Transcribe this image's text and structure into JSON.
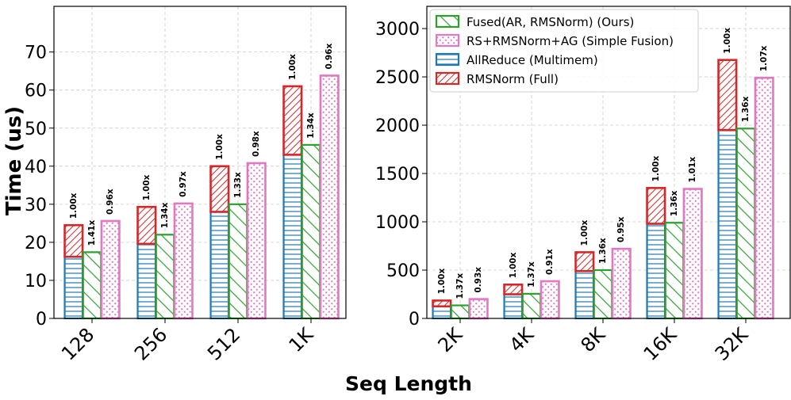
{
  "chart_data": {
    "type": "bar",
    "subtype": "grouped-stacked",
    "ylabel": "Time (us)",
    "xlabel": "Seq Length",
    "legend": {
      "placement": "top-left of right panel",
      "entries": [
        {
          "key": "fused",
          "label": "Fused(AR, RMSNorm) (Ours)"
        },
        {
          "key": "simple",
          "label": "RS+RMSNorm+AG (Simple Fusion)"
        },
        {
          "key": "allreduce",
          "label": "AllReduce (Multimem)"
        },
        {
          "key": "rmsnorm",
          "label": "RMSNorm (Full)"
        }
      ]
    },
    "colors": {
      "fused": "#2ca02c",
      "simple": "#e377c2",
      "allreduce": "#1f77b4",
      "rmsnorm": "#d62728"
    },
    "panels": [
      {
        "name": "left",
        "ylim": [
          0,
          82
        ],
        "yticks": [
          "0",
          "10",
          "20",
          "30",
          "40",
          "50",
          "60",
          "70"
        ],
        "ytick_values": [
          0,
          10,
          20,
          30,
          40,
          50,
          60,
          70
        ],
        "grid": true,
        "categories": [
          "128",
          "256",
          "512",
          "1K"
        ],
        "groups": [
          {
            "category": "128",
            "allreduce": 16.2,
            "rmsnorm": 8.3,
            "fused": 17.4,
            "simple": 25.6,
            "labels": [
              "1.00x",
              "1.41x",
              "0.96x"
            ]
          },
          {
            "category": "256",
            "allreduce": 19.6,
            "rmsnorm": 9.7,
            "fused": 22.0,
            "simple": 30.2,
            "labels": [
              "1.00x",
              "1.34x",
              "0.97x"
            ]
          },
          {
            "category": "512",
            "allreduce": 28.0,
            "rmsnorm": 12.0,
            "fused": 30.0,
            "simple": 40.8,
            "labels": [
              "1.00x",
              "1.33x",
              "0.98x"
            ]
          },
          {
            "category": "1K",
            "allreduce": 43.0,
            "rmsnorm": 18.0,
            "fused": 45.6,
            "simple": 63.8,
            "labels": [
              "1.00x",
              "1.34x",
              "0.96x"
            ]
          }
        ]
      },
      {
        "name": "right",
        "ylim": [
          0,
          3230
        ],
        "yticks": [
          "0",
          "500",
          "1000",
          "1500",
          "2000",
          "2500",
          "3000"
        ],
        "ytick_values": [
          0,
          500,
          1000,
          1500,
          2000,
          2500,
          3000
        ],
        "grid": true,
        "categories": [
          "2K",
          "4K",
          "8K",
          "16K",
          "32K"
        ],
        "groups": [
          {
            "category": "2K",
            "allreduce": 125,
            "rmsnorm": 60,
            "fused": 135,
            "simple": 200,
            "labels": [
              "1.00x",
              "1.37x",
              "0.93x"
            ]
          },
          {
            "category": "4K",
            "allreduce": 250,
            "rmsnorm": 100,
            "fused": 255,
            "simple": 385,
            "labels": [
              "1.00x",
              "1.37x",
              "0.91x"
            ]
          },
          {
            "category": "8K",
            "allreduce": 490,
            "rmsnorm": 195,
            "fused": 500,
            "simple": 720,
            "labels": [
              "1.00x",
              "1.36x",
              "0.95x"
            ]
          },
          {
            "category": "16K",
            "allreduce": 980,
            "rmsnorm": 370,
            "fused": 990,
            "simple": 1340,
            "labels": [
              "1.00x",
              "1.36x",
              "1.01x"
            ]
          },
          {
            "category": "32K",
            "allreduce": 1950,
            "rmsnorm": 725,
            "fused": 1965,
            "simple": 2490,
            "labels": [
              "1.00x",
              "1.36x",
              "1.07x"
            ]
          }
        ]
      }
    ]
  }
}
